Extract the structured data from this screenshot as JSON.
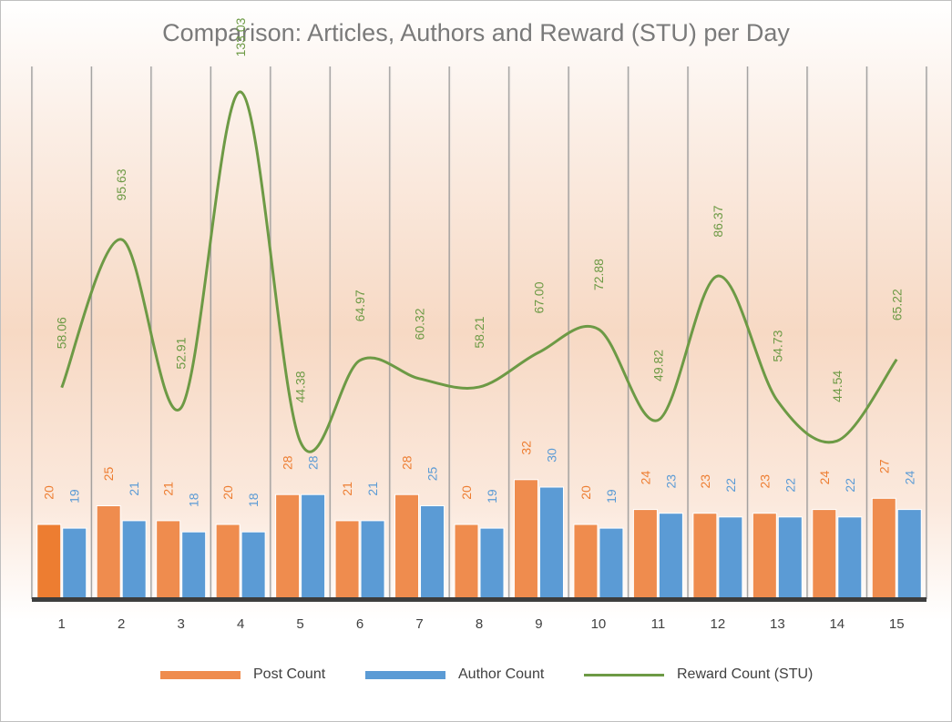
{
  "chart_data": {
    "type": "bar",
    "title": "Comparison: Articles, Authors and Reward (STU) per Day",
    "categories": [
      "1",
      "2",
      "3",
      "4",
      "5",
      "6",
      "7",
      "8",
      "9",
      "10",
      "11",
      "12",
      "13",
      "14",
      "15"
    ],
    "series": [
      {
        "name": "Post Count",
        "type": "bar",
        "color": "#ef8c4e",
        "values": [
          20,
          25,
          21,
          20,
          28,
          21,
          28,
          20,
          32,
          20,
          24,
          23,
          23,
          24,
          27
        ],
        "labels": [
          "20",
          "25",
          "21",
          "20",
          "28",
          "21",
          "28",
          "20",
          "32",
          "20",
          "24",
          "23",
          "23",
          "24",
          "27"
        ]
      },
      {
        "name": "Author Count",
        "type": "bar",
        "color": "#5b9bd5",
        "values": [
          19,
          21,
          18,
          18,
          28,
          21,
          25,
          19,
          30,
          19,
          23,
          22,
          22,
          22,
          24
        ],
        "labels": [
          "19",
          "21",
          "18",
          "18",
          "28",
          "21",
          "25",
          "19",
          "30",
          "19",
          "23",
          "22",
          "22",
          "22",
          "24"
        ]
      },
      {
        "name": "Reward Count (STU)",
        "type": "line",
        "color": "#6d9a45",
        "values": [
          58.06,
          95.63,
          52.91,
          133.03,
          44.38,
          64.97,
          60.32,
          58.21,
          67.0,
          72.88,
          49.82,
          86.37,
          54.73,
          44.54,
          65.22
        ],
        "labels": [
          "58.06",
          "95.63",
          "52.91",
          "133.03",
          "44.38",
          "64.97",
          "60.32",
          "58.21",
          "67.00",
          "72.88",
          "49.82",
          "86.37",
          "54.73",
          "44.54",
          "65.22"
        ]
      }
    ],
    "legend_position": "bottom",
    "grid": false
  }
}
